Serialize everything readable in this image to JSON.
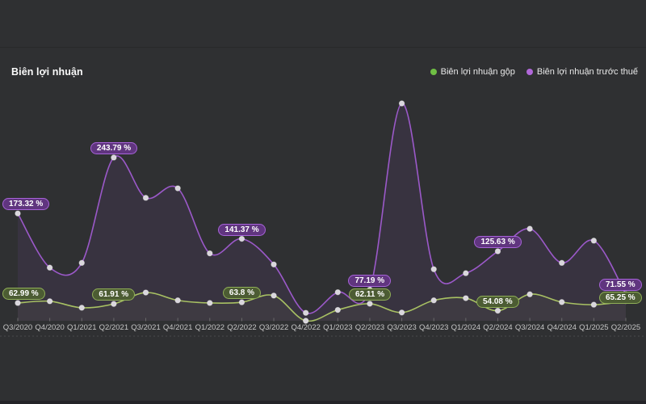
{
  "header": {
    "title": "Biên lợi nhuận"
  },
  "legend": {
    "items": [
      {
        "label": "Biên lợi nhuận gộp",
        "color": "#6fbf44"
      },
      {
        "label": "Biên lợi nhuận trước thuế",
        "color": "#b168d9"
      }
    ]
  },
  "chart_data": {
    "type": "line",
    "title": "Biên lợi nhuận",
    "unit": "%",
    "categories": [
      "Q3/2020",
      "Q4/2020",
      "Q1/2021",
      "Q2/2021",
      "Q3/2021",
      "Q4/2021",
      "Q1/2022",
      "Q2/2022",
      "Q3/2022",
      "Q4/2022",
      "Q1/2023",
      "Q2/2023",
      "Q3/2023",
      "Q4/2023",
      "Q1/2024",
      "Q2/2024",
      "Q3/2024",
      "Q4/2024",
      "Q1/2025",
      "Q2/2025"
    ],
    "series": [
      {
        "name": "Biên lợi nhuận gộp",
        "color": "#a8c163",
        "area_fill": "rgba(168,193,99,0.05)",
        "badge_bg": "#4c5c33",
        "badge_border": "#8fae57",
        "values": [
          62.99,
          65,
          57.5,
          61.91,
          75,
          66,
          63,
          63.8,
          71.5,
          42.5,
          55,
          62.11,
          52,
          66,
          68.5,
          54.08,
          73,
          64,
          61,
          65.25
        ],
        "data_labels": {
          "0": "62.99 %",
          "3": "61.91 %",
          "7": "63.8 %",
          "11": "62.11 %",
          "15": "54.08 %",
          "19": "65.25 %"
        }
      },
      {
        "name": "Biên lợi nhuận trước thuế",
        "color": "#9b59c9",
        "area_fill": "rgba(155,90,210,0.09)",
        "badge_bg": "#60357f",
        "badge_border": "#a763d8",
        "values": [
          173.32,
          105,
          111,
          243.79,
          193,
          205,
          123,
          141.37,
          109,
          48,
          74,
          77.19,
          312,
          103,
          98,
          125.63,
          154,
          111,
          139,
          71.55
        ],
        "data_labels": {
          "0": "173.32 %",
          "3": "243.79 %",
          "7": "141.37 %",
          "11": "77.19 %",
          "15": "125.63 %",
          "19": "71.55 %"
        }
      }
    ],
    "x_axis": {
      "type": "category",
      "tick_labels_visible": true
    },
    "y_axis": {
      "visible": false
    },
    "legend_position": "top-right",
    "grid": false
  }
}
